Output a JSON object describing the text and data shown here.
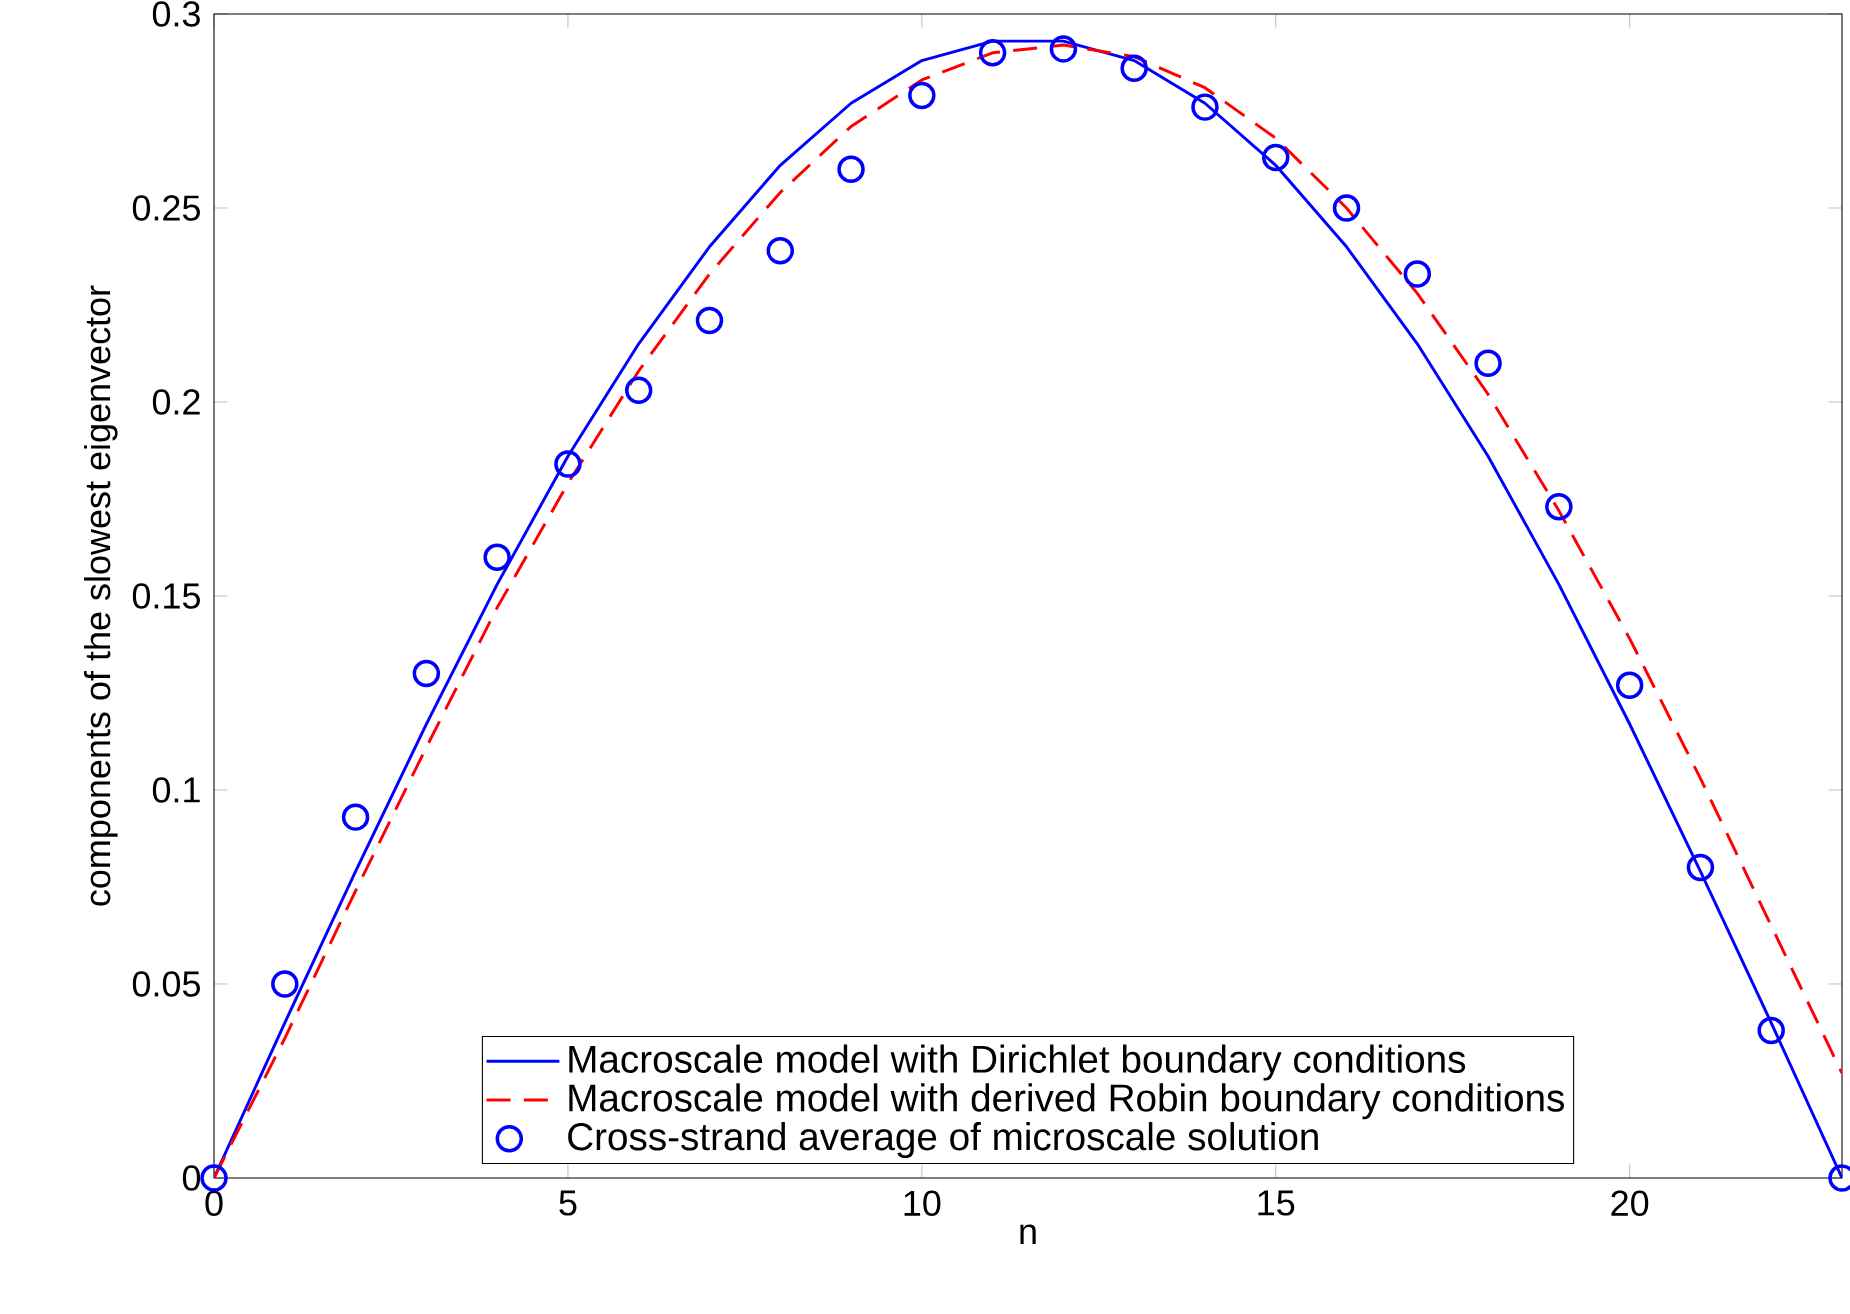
{
  "chart_data": {
    "type": "line",
    "xlabel": "n",
    "ylabel": "components of the slowest eigenvector",
    "x": [
      0,
      1,
      2,
      3,
      4,
      5,
      6,
      7,
      8,
      9,
      10,
      11,
      12,
      13,
      14,
      15,
      16,
      17,
      18,
      19,
      20,
      21,
      22,
      23
    ],
    "xlim": [
      0,
      23
    ],
    "xticks": [
      0,
      5,
      10,
      15,
      20
    ],
    "ylim": [
      0,
      0.3
    ],
    "yticks": [
      0,
      0.05,
      0.1,
      0.15,
      0.2,
      0.25,
      0.3
    ],
    "legend": "bottom",
    "grid": false,
    "series": [
      {
        "name": "Macroscale model with Dirichlet boundary conditions",
        "line_style": "solid",
        "color": "#0000ff",
        "values": [
          0,
          0.04,
          0.079,
          0.117,
          0.153,
          0.186,
          0.215,
          0.24,
          0.261,
          0.277,
          0.288,
          0.293,
          0.293,
          0.288,
          0.277,
          0.261,
          0.24,
          0.215,
          0.186,
          0.153,
          0.117,
          0.079,
          0.04,
          0
        ]
      },
      {
        "name": "Macroscale model with derived Robin boundary conditions",
        "line_style": "dashed",
        "color": "#ff0000",
        "values": [
          0,
          0.036,
          0.074,
          0.111,
          0.147,
          0.179,
          0.208,
          0.233,
          0.254,
          0.271,
          0.283,
          0.29,
          0.292,
          0.289,
          0.281,
          0.268,
          0.25,
          0.228,
          0.202,
          0.172,
          0.139,
          0.103,
          0.065,
          0.027
        ]
      },
      {
        "name": "Cross-strand average of microscale solution",
        "type": "scatter",
        "marker": "circle",
        "color": "#0000ff",
        "values": [
          0,
          0.05,
          0.093,
          0.13,
          0.16,
          0.184,
          0.203,
          0.221,
          0.239,
          0.26,
          0.279,
          0.29,
          0.291,
          0.286,
          0.276,
          0.263,
          0.25,
          0.233,
          0.21,
          0.173,
          0.127,
          0.08,
          0.038,
          0
        ]
      }
    ]
  }
}
